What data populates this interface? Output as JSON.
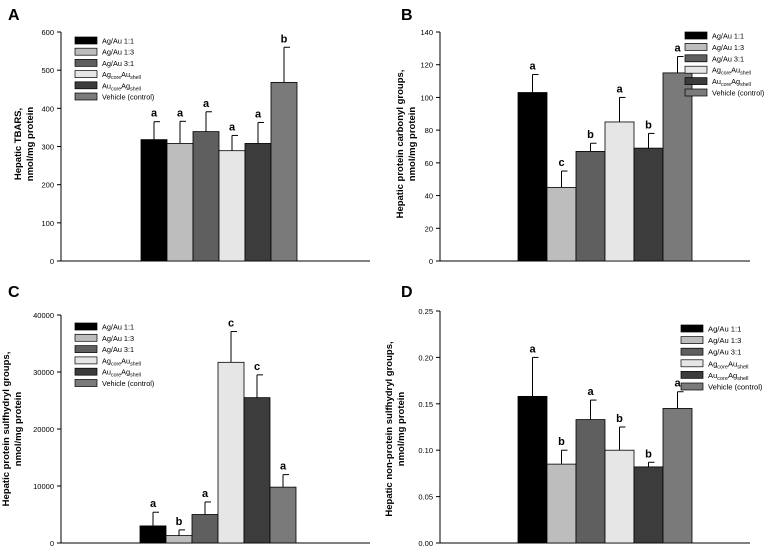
{
  "legend_labels": [
    {
      "main": "Ag/Au 1:1",
      "sub1": "",
      "mid": "",
      "sub2": ""
    },
    {
      "main": "Ag/Au 1:3",
      "sub1": "",
      "mid": "",
      "sub2": ""
    },
    {
      "main": "Ag/Au 3:1",
      "sub1": "",
      "mid": "",
      "sub2": ""
    },
    {
      "main": "Ag",
      "sub1": "core",
      "mid": "Au",
      "sub2": "shell"
    },
    {
      "main": "Au",
      "sub1": "core",
      "mid": "Ag",
      "sub2": "shell"
    },
    {
      "main": "Vehicle (control)",
      "sub1": "",
      "mid": "",
      "sub2": ""
    }
  ],
  "series_colors": [
    "#000000",
    "#bdbdbd",
    "#5f5f5f",
    "#e6e6e6",
    "#3c3c3c",
    "#7a7a7a"
  ],
  "chart_data": [
    {
      "type": "bar",
      "panel": "A",
      "ylabel": [
        "Hepatic TBARS,",
        "nmol/mg protein"
      ],
      "ylim": [
        0,
        600
      ],
      "ticks": [
        0,
        100,
        200,
        300,
        400,
        500,
        600
      ],
      "tick_labels": [
        "0",
        "100",
        "200",
        "300",
        "400",
        "500",
        "600"
      ],
      "categories": [
        "Ag/Au 1:1",
        "Ag/Au 1:3",
        "Ag/Au 3:1",
        "Ag core Au shell",
        "Au core Ag shell",
        "Vehicle (control)"
      ],
      "values": [
        318,
        308,
        339,
        289,
        308,
        468
      ],
      "errors": [
        47,
        58,
        52,
        40,
        55,
        92
      ],
      "letters": [
        "a",
        "a",
        "a",
        "a",
        "a",
        "b"
      ],
      "legend": "top-left"
    },
    {
      "type": "bar",
      "panel": "B",
      "ylabel": [
        "Hepatic protein carbonyl groups,",
        "nmol/mg protein"
      ],
      "ylim": [
        0,
        140
      ],
      "ticks": [
        0,
        20,
        40,
        60,
        80,
        100,
        120,
        140
      ],
      "tick_labels": [
        "0",
        "20",
        "40",
        "60",
        "80",
        "100",
        "120",
        "140"
      ],
      "categories": [
        "Ag/Au 1:1",
        "Ag/Au 1:3",
        "Ag/Au 3:1",
        "Ag core Au shell",
        "Au core Ag shell",
        "Vehicle (control)"
      ],
      "values": [
        103,
        45,
        67,
        85,
        69,
        115
      ],
      "errors": [
        11,
        10,
        5,
        15,
        9,
        10
      ],
      "letters": [
        "a",
        "c",
        "b",
        "a",
        "b",
        "a"
      ],
      "legend": "top-right"
    },
    {
      "type": "bar",
      "panel": "C",
      "ylabel": [
        "Hepatic protein sulfhydryl groups,",
        "nmol/mg protein"
      ],
      "ylim": [
        0,
        40000
      ],
      "ticks": [
        0,
        10000,
        20000,
        30000,
        40000
      ],
      "tick_labels": [
        "0",
        "10000",
        "20000",
        "30000",
        "40000"
      ],
      "categories": [
        "Ag/Au 1:1",
        "Ag/Au 1:3",
        "Ag/Au 3:1",
        "Ag core Au shell",
        "Au core Ag shell",
        "Vehicle (control)"
      ],
      "values": [
        3000,
        1300,
        5000,
        31700,
        25500,
        9800
      ],
      "errors": [
        2400,
        1000,
        2200,
        5400,
        4000,
        2200
      ],
      "letters": [
        "a",
        "b",
        "a",
        "c",
        "c",
        "a"
      ],
      "legend": "top-left"
    },
    {
      "type": "bar",
      "panel": "D",
      "ylabel": [
        "Hepatic non-protein sulfhydryl groups,",
        "nmol/mg protein"
      ],
      "ylim": [
        0,
        0.25
      ],
      "ticks": [
        0,
        0.05,
        0.1,
        0.15,
        0.2,
        0.25
      ],
      "tick_labels": [
        "0.00",
        "0.05",
        "0.10",
        "0.15",
        "0.20",
        "0.25"
      ],
      "categories": [
        "Ag/Au 1:1",
        "Ag/Au 1:3",
        "Ag/Au 3:1",
        "Ag core Au shell",
        "Au core Ag shell",
        "Vehicle (control)"
      ],
      "values": [
        0.158,
        0.085,
        0.133,
        0.1,
        0.082,
        0.145
      ],
      "errors": [
        0.042,
        0.015,
        0.021,
        0.025,
        0.005,
        0.018
      ],
      "letters": [
        "a",
        "b",
        "a",
        "b",
        "b",
        "a"
      ],
      "legend": "top-right"
    }
  ]
}
